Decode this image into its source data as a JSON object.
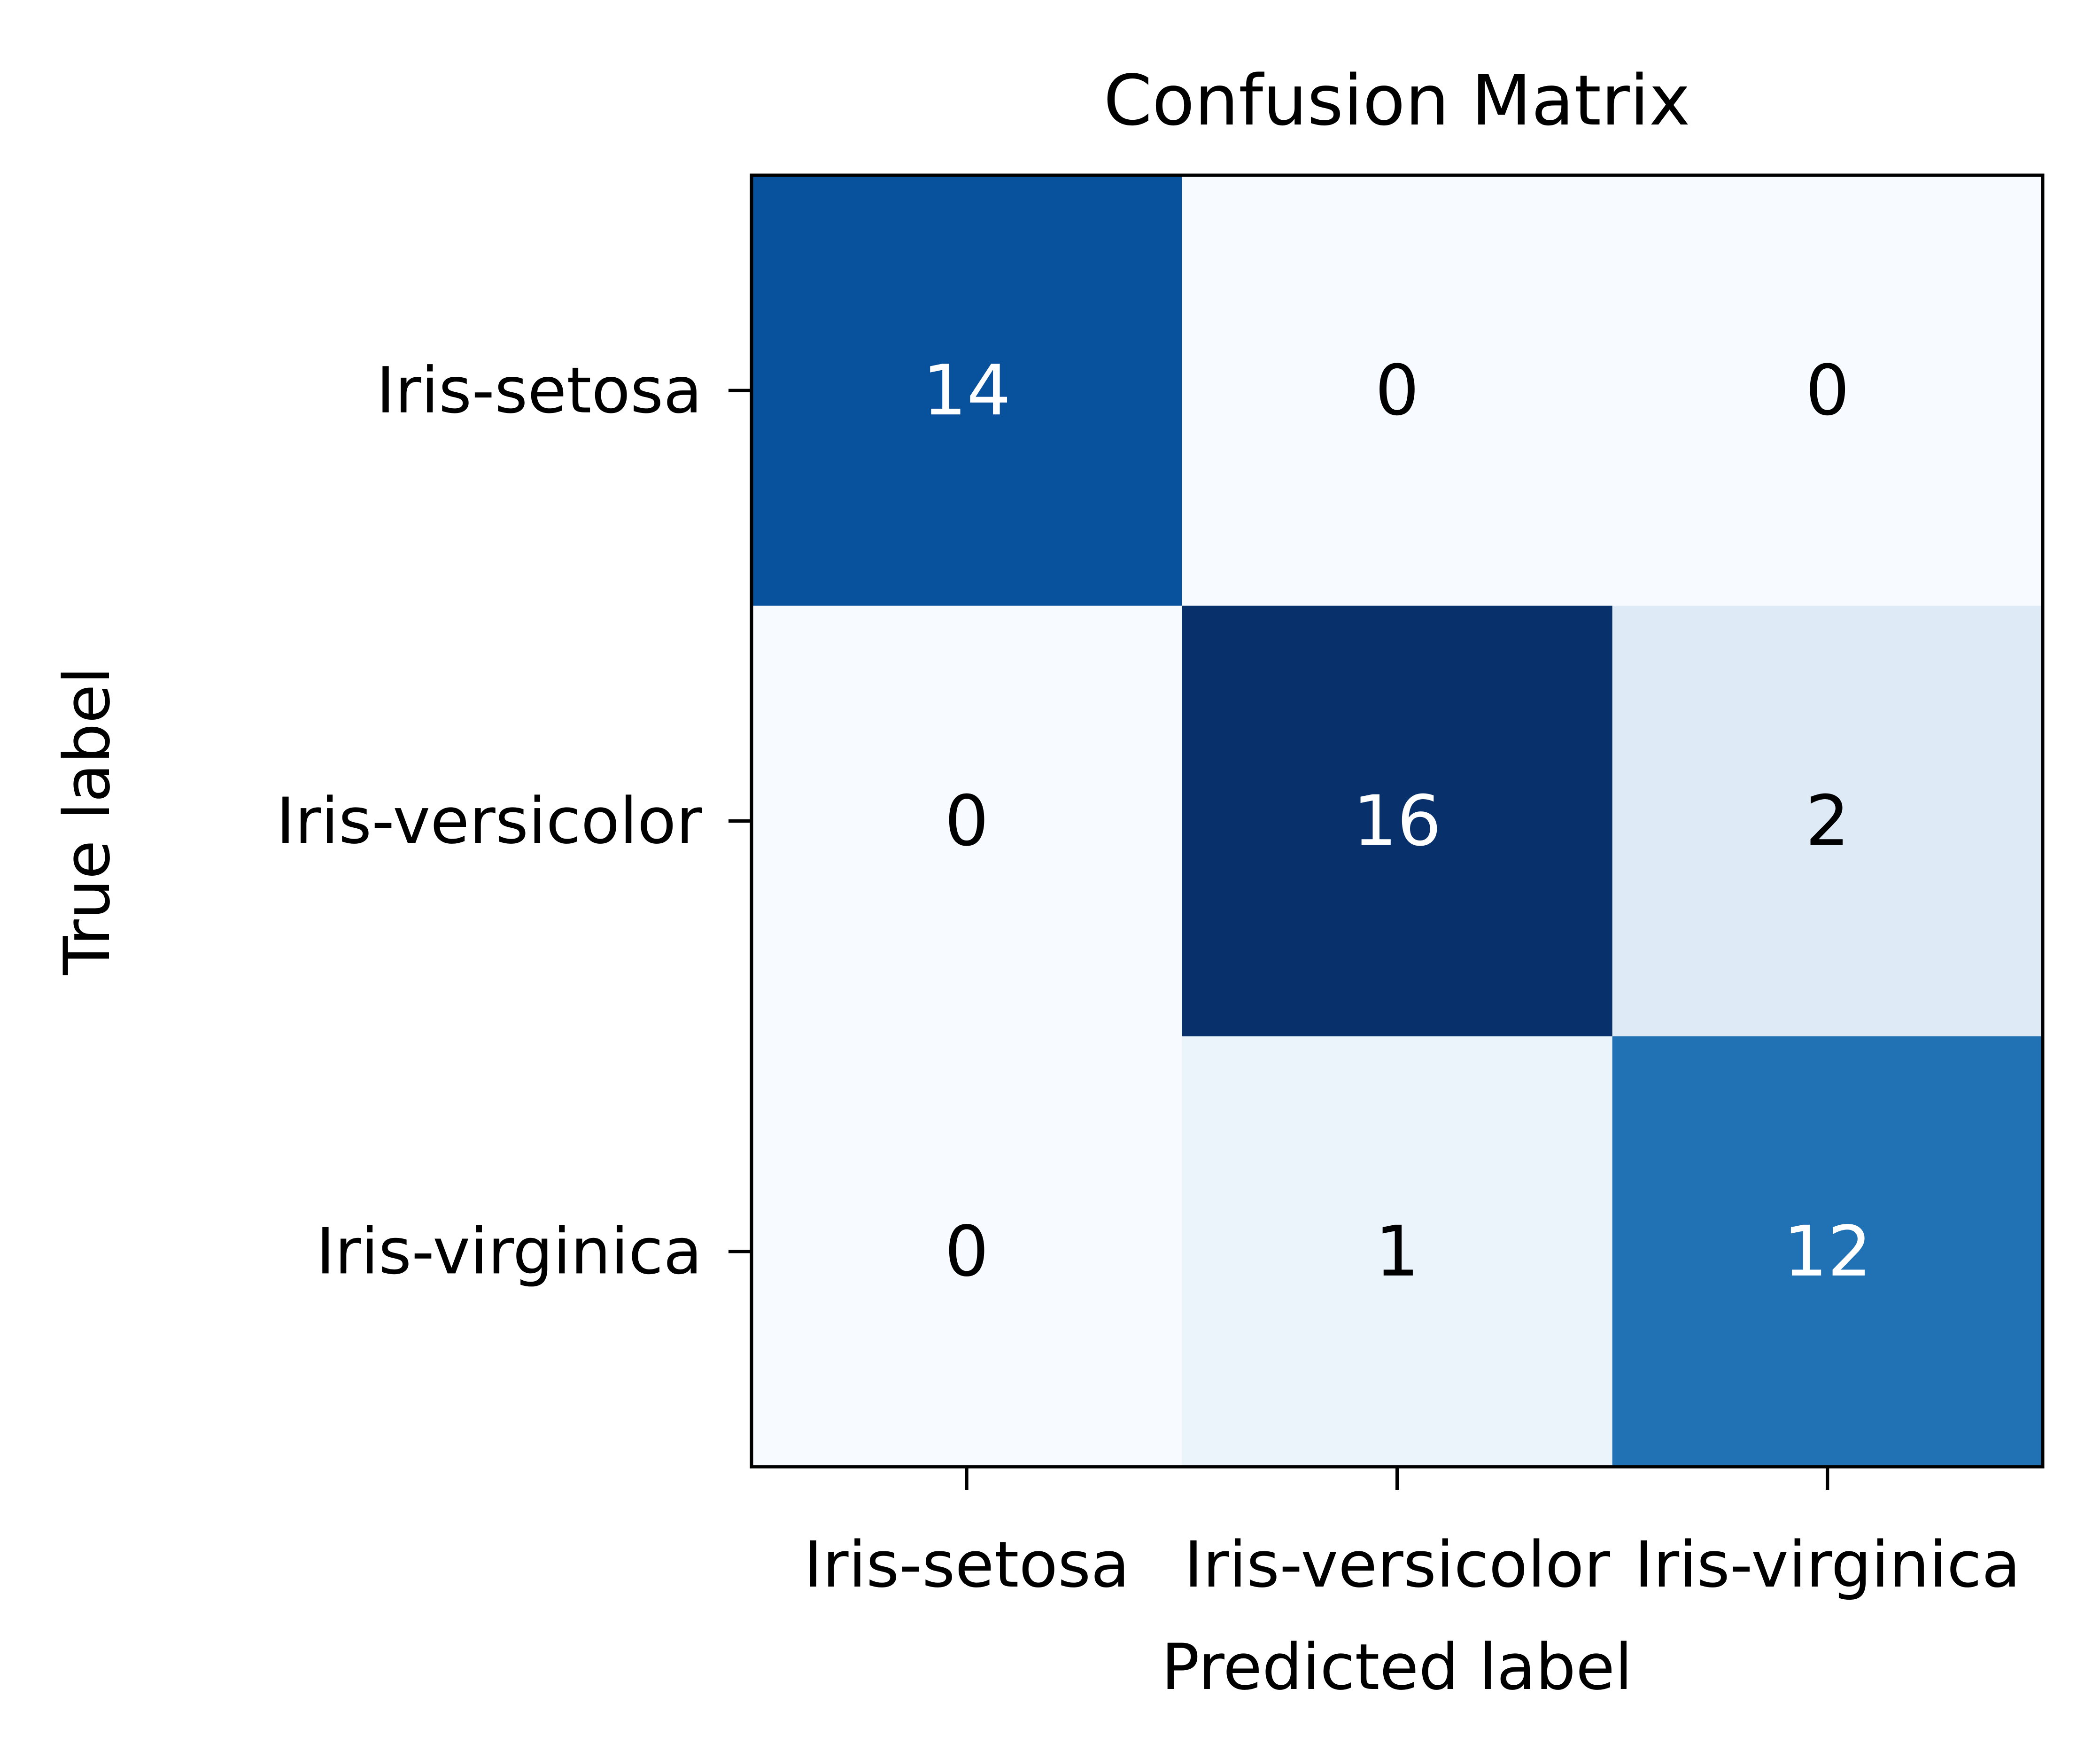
{
  "chart_data": {
    "type": "heatmap",
    "title": "Confusion Matrix",
    "xlabel": "Predicted label",
    "ylabel": "True label",
    "x_categories": [
      "Iris-setosa",
      "Iris-versicolor",
      "Iris-virginica"
    ],
    "y_categories": [
      "Iris-setosa",
      "Iris-versicolor",
      "Iris-virginica"
    ],
    "matrix": [
      [
        14,
        0,
        0
      ],
      [
        0,
        16,
        2
      ],
      [
        0,
        1,
        12
      ]
    ],
    "colormap": "Blues",
    "value_range": [
      0,
      16
    ],
    "colors": {
      "low": "#f7fbff",
      "high": "#08306b",
      "text_dark": "#000000",
      "text_light": "#ffffff"
    },
    "grid": false,
    "legend": "none"
  }
}
